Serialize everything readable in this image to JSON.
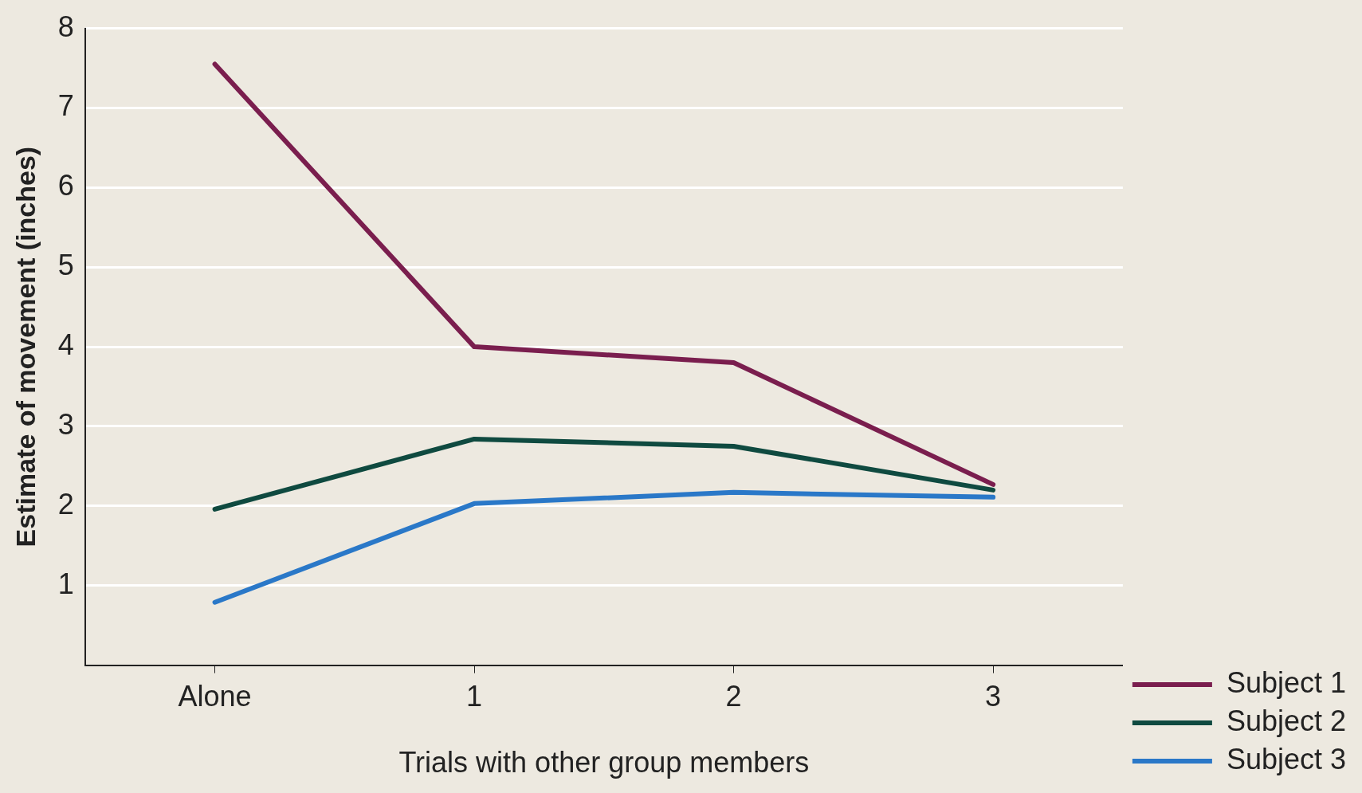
{
  "chart_data": {
    "type": "line",
    "xlabel": "Trials with other group members",
    "ylabel": "Estimate of movement (inches)",
    "categories": [
      "Alone",
      "1",
      "2",
      "3"
    ],
    "series": [
      {
        "name": "Subject 1",
        "color": "#7a1e4e",
        "values": [
          7.55,
          4.0,
          3.8,
          2.27
        ]
      },
      {
        "name": "Subject 2",
        "color": "#0f4a40",
        "values": [
          1.96,
          2.84,
          2.75,
          2.2
        ]
      },
      {
        "name": "Subject 3",
        "color": "#2a78c8",
        "values": [
          0.79,
          2.03,
          2.17,
          2.11
        ]
      }
    ],
    "ylim": [
      0,
      8
    ],
    "yticks": [
      1,
      2,
      3,
      4,
      5,
      6,
      7,
      8
    ],
    "grid": "y",
    "legend": "bottom right",
    "marker": "none",
    "line_style": "solid"
  }
}
